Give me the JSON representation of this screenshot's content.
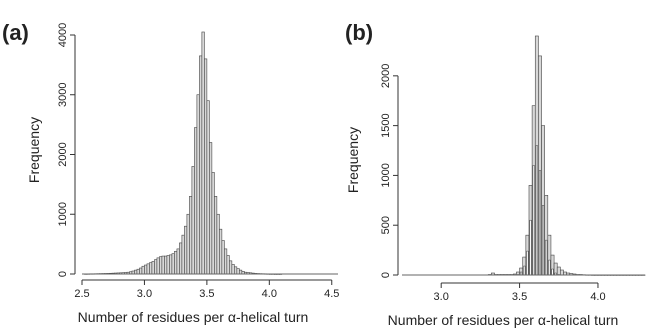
{
  "chart_data": [
    {
      "panel_label": "(a)",
      "type": "bar",
      "xlabel": "Number of residues per α-helical turn",
      "ylabel": "Frequency",
      "xlim": [
        2.5,
        4.55
      ],
      "ylim": [
        0,
        4050
      ],
      "xticks": [
        "2.5",
        "3.0",
        "3.5",
        "4.0",
        "4.5"
      ],
      "yticks": [
        "0",
        "1000",
        "2000",
        "3000",
        "4000"
      ],
      "bin_start": 2.5,
      "bin_width": 0.02,
      "bar_fill": "#d8d8d8",
      "bar_stroke": "#444444",
      "values": [
        0,
        2,
        3,
        4,
        4,
        5,
        6,
        7,
        8,
        9,
        10,
        12,
        14,
        16,
        18,
        20,
        22,
        25,
        30,
        38,
        50,
        65,
        80,
        100,
        130,
        150,
        170,
        190,
        210,
        240,
        270,
        290,
        300,
        300,
        310,
        320,
        340,
        380,
        420,
        520,
        650,
        800,
        1000,
        1300,
        1800,
        2450,
        3000,
        3650,
        4050,
        3600,
        2900,
        2200,
        1700,
        1300,
        1000,
        750,
        560,
        420,
        310,
        220,
        160,
        120,
        90,
        65,
        45,
        30,
        25,
        20,
        15,
        10,
        8,
        6,
        5,
        4,
        3,
        2,
        2,
        1,
        1,
        1,
        0,
        0,
        0
      ]
    },
    {
      "panel_label": "(b)",
      "type": "bar",
      "xlabel": "Number of residues per α-helical turn",
      "ylabel": "Frequency",
      "xlim": [
        2.75,
        4.3
      ],
      "ylim": [
        0,
        2400
      ],
      "xticks": [
        "3.0",
        "3.5",
        "4.0"
      ],
      "yticks": [
        "0",
        "500",
        "1000",
        "1500",
        "2000"
      ],
      "bin_start": 3.3,
      "bin_width": 0.02,
      "bar_fill": "#d8d8d8",
      "bar_stroke": "#444444",
      "values": [
        5,
        20,
        5,
        5,
        5,
        5,
        5,
        5,
        10,
        30,
        70,
        180,
        400,
        900,
        1700,
        2400,
        2200,
        1500,
        800,
        400,
        200,
        120,
        80,
        50,
        30,
        20,
        15,
        10,
        5,
        5,
        3,
        2,
        2,
        1,
        1,
        1,
        1,
        1,
        1,
        1,
        1,
        1,
        1,
        1,
        1,
        1,
        1,
        1,
        1,
        1
      ],
      "inner_fill": "#ffffff",
      "inner_values": [
        0,
        0,
        0,
        0,
        0,
        0,
        0,
        0,
        0,
        5,
        30,
        90,
        240,
        550,
        1100,
        1300,
        1050,
        700,
        350,
        150,
        60,
        20,
        5,
        0,
        0,
        0,
        0,
        0,
        0,
        0,
        0,
        0,
        0,
        0,
        0,
        0,
        0,
        0,
        0,
        0,
        0,
        0,
        0,
        0,
        0,
        0,
        0,
        0,
        0,
        0
      ]
    }
  ]
}
